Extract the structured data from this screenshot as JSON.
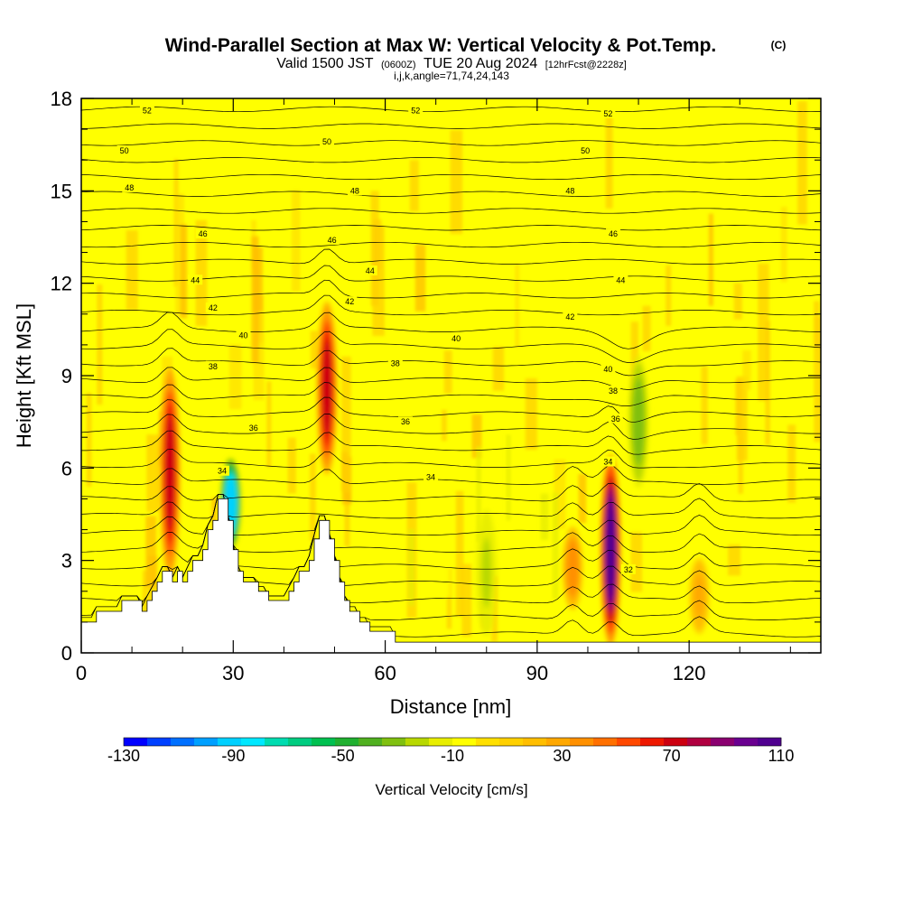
{
  "title": {
    "main": "Wind-Parallel Section at Max W: Vertical Velocity & Pot.Temp.",
    "copyright": "(C)",
    "valid_a": "Valid 1500 JST",
    "valid_b": "(0600Z)",
    "valid_c": "TUE 20 Aug 2024",
    "valid_d": "[12hrFcst@2228z]",
    "ijk": "i,j,k,angle=71,74,24,143"
  },
  "chart_data": {
    "type": "heatmap",
    "xlabel": "Distance [nm]",
    "ylabel": "Height [Kft MSL]",
    "xlim": [
      0,
      146
    ],
    "ylim": [
      0,
      18
    ],
    "x_ticks": [
      "0",
      "30",
      "60",
      "90",
      "120"
    ],
    "y_ticks": [
      "0",
      "3",
      "6",
      "9",
      "12",
      "15",
      "18"
    ],
    "terrain": [
      [
        0,
        1.0
      ],
      [
        3,
        1.0
      ],
      [
        3,
        1.35
      ],
      [
        8,
        1.35
      ],
      [
        8,
        1.7
      ],
      [
        12,
        1.7
      ],
      [
        12,
        1.35
      ],
      [
        13,
        1.35
      ],
      [
        13,
        1.7
      ],
      [
        14,
        1.7
      ],
      [
        14,
        2.0
      ],
      [
        15,
        2.0
      ],
      [
        15,
        2.3
      ],
      [
        16,
        2.3
      ],
      [
        16,
        2.65
      ],
      [
        18,
        2.65
      ],
      [
        18,
        2.3
      ],
      [
        19,
        2.3
      ],
      [
        19,
        2.65
      ],
      [
        20,
        2.65
      ],
      [
        20,
        2.3
      ],
      [
        21,
        2.3
      ],
      [
        21,
        2.65
      ],
      [
        22,
        2.65
      ],
      [
        22,
        3.0
      ],
      [
        24,
        3.0
      ],
      [
        24,
        3.35
      ],
      [
        25,
        3.35
      ],
      [
        25,
        4.0
      ],
      [
        26,
        4.0
      ],
      [
        26,
        4.3
      ],
      [
        27,
        4.3
      ],
      [
        27,
        5.0
      ],
      [
        29,
        5.0
      ],
      [
        29,
        4.3
      ],
      [
        30,
        4.3
      ],
      [
        30,
        3.35
      ],
      [
        31,
        3.35
      ],
      [
        31,
        2.65
      ],
      [
        32,
        2.65
      ],
      [
        32,
        2.3
      ],
      [
        35,
        2.3
      ],
      [
        35,
        2.0
      ],
      [
        37,
        2.0
      ],
      [
        37,
        1.7
      ],
      [
        41,
        1.7
      ],
      [
        41,
        2.0
      ],
      [
        42,
        2.0
      ],
      [
        42,
        2.3
      ],
      [
        43,
        2.3
      ],
      [
        43,
        2.65
      ],
      [
        45,
        2.65
      ],
      [
        45,
        3.0
      ],
      [
        46,
        3.0
      ],
      [
        46,
        3.7
      ],
      [
        47,
        3.7
      ],
      [
        47,
        4.3
      ],
      [
        49,
        4.3
      ],
      [
        49,
        3.7
      ],
      [
        50,
        3.7
      ],
      [
        50,
        3.0
      ],
      [
        51,
        3.0
      ],
      [
        51,
        2.3
      ],
      [
        52,
        2.3
      ],
      [
        52,
        1.7
      ],
      [
        53,
        1.7
      ],
      [
        53,
        1.35
      ],
      [
        55,
        1.35
      ],
      [
        55,
        1.0
      ],
      [
        57,
        1.0
      ],
      [
        57,
        0.7
      ],
      [
        62,
        0.7
      ],
      [
        62,
        0.35
      ],
      [
        146,
        0.35
      ]
    ],
    "updrafts": [
      {
        "x": 17.5,
        "y_bottom": 2.7,
        "y_top": 9.0,
        "peak": 75
      },
      {
        "x": 48.5,
        "y_bottom": 6.0,
        "y_top": 11.2,
        "peak": 75
      },
      {
        "x": 104.5,
        "y_bottom": 0.5,
        "y_top": 6.2,
        "peak": 105
      },
      {
        "x": 97,
        "y_bottom": 1.5,
        "y_top": 4.0,
        "peak": 40
      },
      {
        "x": 122,
        "y_bottom": 0.7,
        "y_top": 3.0,
        "peak": 25
      }
    ],
    "downdrafts": [
      {
        "x": 29.5,
        "y_bottom": 3.5,
        "y_top": 6.2,
        "peak": -95
      },
      {
        "x": 110,
        "y_bottom": 5.5,
        "y_top": 9.5,
        "peak": -35
      },
      {
        "x": 80,
        "y_bottom": 0.7,
        "y_top": 4.5,
        "peak": -20
      }
    ],
    "contour_labels": [
      {
        "text": "52",
        "x": 13,
        "y": 17.6
      },
      {
        "text": "52",
        "x": 66,
        "y": 17.6
      },
      {
        "text": "52",
        "x": 104,
        "y": 17.5
      },
      {
        "text": "50",
        "x": 8.5,
        "y": 16.3
      },
      {
        "text": "50",
        "x": 48.5,
        "y": 16.6
      },
      {
        "text": "50",
        "x": 99.5,
        "y": 16.3
      },
      {
        "text": "48",
        "x": 9.5,
        "y": 15.1
      },
      {
        "text": "48",
        "x": 54,
        "y": 15.0
      },
      {
        "text": "48",
        "x": 96.5,
        "y": 15.0
      },
      {
        "text": "46",
        "x": 24,
        "y": 13.6
      },
      {
        "text": "46",
        "x": 49.5,
        "y": 13.4
      },
      {
        "text": "46",
        "x": 105,
        "y": 13.6
      },
      {
        "text": "44",
        "x": 22.5,
        "y": 12.1
      },
      {
        "text": "44",
        "x": 57,
        "y": 12.4
      },
      {
        "text": "44",
        "x": 106.5,
        "y": 12.1
      },
      {
        "text": "42",
        "x": 26,
        "y": 11.2
      },
      {
        "text": "42",
        "x": 53,
        "y": 11.4
      },
      {
        "text": "42",
        "x": 96.5,
        "y": 10.9
      },
      {
        "text": "40",
        "x": 32,
        "y": 10.3
      },
      {
        "text": "40",
        "x": 74,
        "y": 10.2
      },
      {
        "text": "40",
        "x": 104,
        "y": 9.2
      },
      {
        "text": "38",
        "x": 26,
        "y": 9.3
      },
      {
        "text": "38",
        "x": 62,
        "y": 9.4
      },
      {
        "text": "38",
        "x": 105,
        "y": 8.5
      },
      {
        "text": "36",
        "x": 34,
        "y": 7.3
      },
      {
        "text": "36",
        "x": 64,
        "y": 7.5
      },
      {
        "text": "36",
        "x": 105.5,
        "y": 7.6
      },
      {
        "text": "34",
        "x": 27.8,
        "y": 5.9
      },
      {
        "text": "34",
        "x": 69,
        "y": 5.7
      },
      {
        "text": "34",
        "x": 104,
        "y": 6.2
      },
      {
        "text": "32",
        "x": 108,
        "y": 2.7
      }
    ],
    "colorbar": {
      "title": "Vertical Velocity [cm/s]",
      "min": -130,
      "max": 110,
      "step": 10,
      "tick_labels": [
        "-130",
        "-90",
        "-50",
        "-10",
        "30",
        "70",
        "110"
      ],
      "colors": [
        "#0000ff",
        "#0040ff",
        "#0070ff",
        "#00a0ff",
        "#00d0ff",
        "#00e8ff",
        "#00dcb0",
        "#00cc80",
        "#00c050",
        "#20b030",
        "#50b020",
        "#80c010",
        "#b8d800",
        "#e8ee00",
        "#ffff00",
        "#ffe000",
        "#ffd000",
        "#ffbe00",
        "#ffa800",
        "#ff9000",
        "#ff7000",
        "#ff4800",
        "#ee1800",
        "#cc0010",
        "#b00040",
        "#8a0070",
        "#6a0090",
        "#500090"
      ]
    }
  }
}
